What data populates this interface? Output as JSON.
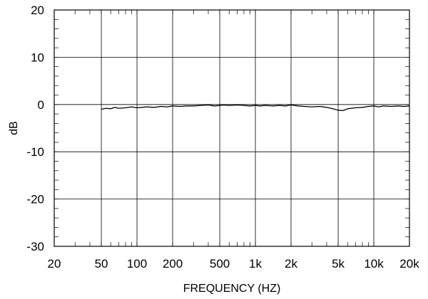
{
  "chart_data": {
    "type": "line",
    "xlabel": "FREQUENCY  (HZ)",
    "ylabel": "dB",
    "xscale": "log",
    "xlim": [
      20,
      20000
    ],
    "ylim": [
      -30,
      20
    ],
    "grid": true,
    "x_ticks": [
      {
        "value": 20,
        "label": "20"
      },
      {
        "value": 50,
        "label": "50"
      },
      {
        "value": 100,
        "label": "100"
      },
      {
        "value": 200,
        "label": "200"
      },
      {
        "value": 500,
        "label": "500"
      },
      {
        "value": 1000,
        "label": "1k"
      },
      {
        "value": 2000,
        "label": "2k"
      },
      {
        "value": 5000,
        "label": "5k"
      },
      {
        "value": 10000,
        "label": "10k"
      },
      {
        "value": 20000,
        "label": "20k"
      }
    ],
    "y_ticks": [
      {
        "value": 20,
        "label": "20"
      },
      {
        "value": 10,
        "label": "10"
      },
      {
        "value": 0,
        "label": "0"
      },
      {
        "value": -10,
        "label": "-10"
      },
      {
        "value": -20,
        "label": "-20"
      },
      {
        "value": -30,
        "label": "-30"
      }
    ],
    "series": [
      {
        "x": [
          50,
          55,
          60,
          65,
          70,
          80,
          90,
          100,
          110,
          120,
          140,
          160,
          180,
          200,
          230,
          260,
          300,
          350,
          400,
          450,
          500,
          550,
          600,
          700,
          800,
          900,
          1000,
          1100,
          1200,
          1400,
          1600,
          1800,
          2000,
          2300,
          2600,
          3000,
          3500,
          4000,
          4500,
          5000,
          5500,
          6000,
          7000,
          8000,
          9000,
          10000,
          11000,
          12000,
          14000,
          16000,
          18000,
          20000
        ],
        "y": [
          -1.0,
          -0.8,
          -0.9,
          -0.6,
          -0.8,
          -0.7,
          -0.5,
          -0.7,
          -0.6,
          -0.5,
          -0.6,
          -0.4,
          -0.5,
          -0.3,
          -0.4,
          -0.3,
          -0.3,
          -0.2,
          -0.1,
          -0.3,
          -0.2,
          -0.1,
          -0.2,
          -0.1,
          -0.2,
          -0.3,
          -0.2,
          -0.3,
          -0.2,
          -0.3,
          -0.2,
          -0.3,
          -0.1,
          -0.3,
          -0.4,
          -0.5,
          -0.4,
          -0.6,
          -0.9,
          -1.2,
          -1.3,
          -0.9,
          -0.7,
          -0.6,
          -0.4,
          -0.3,
          -0.5,
          -0.3,
          -0.4,
          -0.3,
          -0.4,
          -0.3
        ]
      }
    ]
  }
}
